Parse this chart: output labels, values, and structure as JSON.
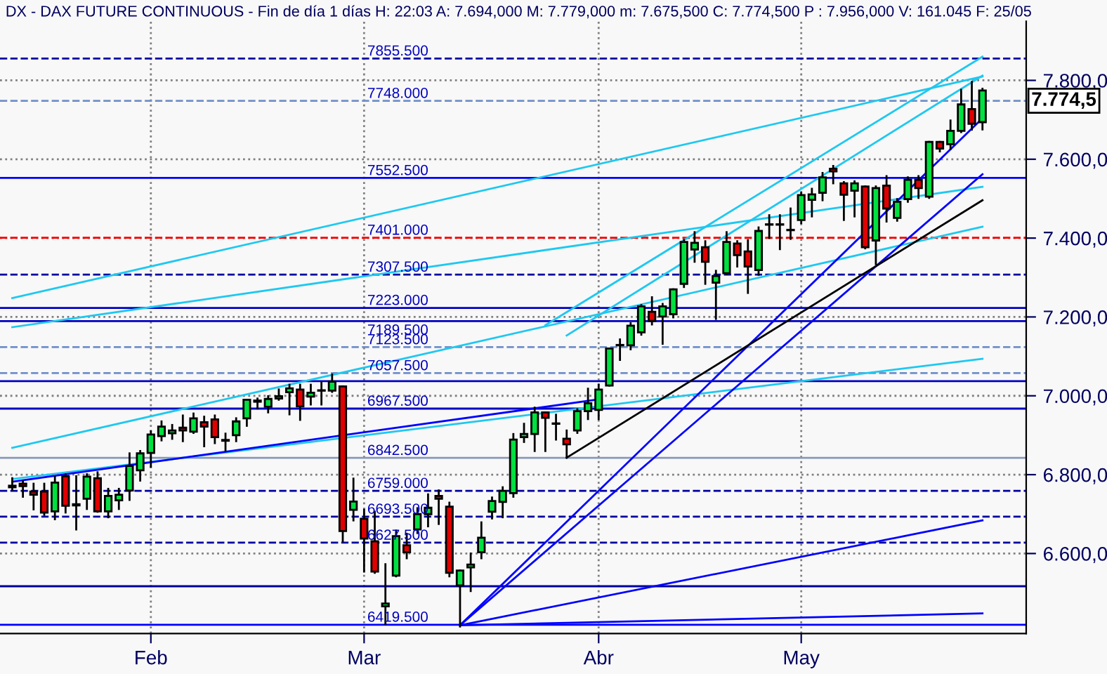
{
  "chart_data": {
    "type": "candlestick",
    "title": "DX - DAX FUTURE CONTINUOUS - Fin de día 1 días H: 22:03 A: 7.694,000 M: 7.779,000 m: 7.675,500 C: 7.774,500 P : 7.956,000 V: 161.045 F: 25/05",
    "categories": [
      null,
      null,
      null,
      null,
      null,
      null,
      null,
      null,
      null,
      null,
      null,
      null,
      null,
      "Feb",
      null,
      null,
      null,
      null,
      null,
      null,
      null,
      null,
      null,
      null,
      null,
      null,
      null,
      null,
      null,
      null,
      null,
      null,
      null,
      "Mar",
      null,
      null,
      null,
      null,
      null,
      null,
      null,
      null,
      null,
      null,
      null,
      null,
      null,
      null,
      null,
      null,
      null,
      null,
      null,
      null,
      null,
      "Abr",
      null,
      null,
      null,
      null,
      null,
      null,
      null,
      null,
      null,
      null,
      null,
      null,
      null,
      null,
      null,
      null,
      null,
      null,
      "May",
      null,
      null,
      null,
      null,
      null,
      null,
      null,
      null,
      null,
      null,
      null,
      null,
      null,
      null,
      null,
      null,
      null
    ],
    "ohlc": [
      [
        6772,
        6791,
        6762,
        6768
      ],
      [
        6777,
        6783,
        6744,
        6771
      ],
      [
        6757,
        6777,
        6712,
        6749
      ],
      [
        6757,
        6777,
        6698,
        6704
      ],
      [
        6707,
        6794,
        6687,
        6780
      ],
      [
        6796,
        6801,
        6704,
        6721
      ],
      [
        6725,
        6796,
        6661,
        6722
      ],
      [
        6739,
        6801,
        6713,
        6795
      ],
      [
        6791,
        6806,
        6706,
        6707
      ],
      [
        6707,
        6764,
        6692,
        6746
      ],
      [
        6735,
        6764,
        6713,
        6749
      ],
      [
        6760,
        6854,
        6736,
        6822
      ],
      [
        6811,
        6860,
        6785,
        6854
      ],
      [
        6855,
        6910,
        6820,
        6902
      ],
      [
        6898,
        6935,
        6887,
        6922
      ],
      [
        6905,
        6926,
        6891,
        6912
      ],
      [
        6919,
        6950,
        6885,
        6912
      ],
      [
        6909,
        6955,
        6906,
        6943
      ],
      [
        6933,
        6947,
        6872,
        6922
      ],
      [
        6940,
        6950,
        6880,
        6895
      ],
      [
        6888,
        6904,
        6862,
        6886
      ],
      [
        6900,
        6943,
        6885,
        6935
      ],
      [
        6943,
        6990,
        6924,
        6990
      ],
      [
        6985,
        6993,
        6968,
        6988
      ],
      [
        6972,
        6999,
        6958,
        6992
      ],
      [
        6993,
        7016,
        6990,
        6999
      ],
      [
        7009,
        7028,
        6953,
        7019
      ],
      [
        7016,
        7028,
        6939,
        6973
      ],
      [
        6998,
        7028,
        6978,
        7008
      ],
      [
        7013,
        7033,
        6978,
        7014
      ],
      [
        7013,
        7054,
        7010,
        7036
      ],
      [
        7024,
        7024,
        6631,
        6657
      ],
      [
        6711,
        6790,
        6684,
        6732
      ],
      [
        6688,
        6711,
        6554,
        6638
      ],
      [
        6631,
        6706,
        6551,
        6554
      ],
      [
        6466,
        6573,
        6421,
        6473
      ],
      [
        6544,
        6658,
        6542,
        6644
      ],
      [
        6621,
        6650,
        6588,
        6603
      ],
      [
        6661,
        6715,
        6652,
        6700
      ],
      [
        6700,
        6750,
        6669,
        6716
      ],
      [
        6746,
        6760,
        6675,
        6739
      ],
      [
        6719,
        6729,
        6542,
        6551
      ],
      [
        6519,
        6557,
        6415,
        6557
      ],
      [
        6565,
        6600,
        6505,
        6572
      ],
      [
        6603,
        6679,
        6588,
        6640
      ],
      [
        6706,
        6742,
        6689,
        6733
      ],
      [
        6731,
        6768,
        6692,
        6759
      ],
      [
        6753,
        6903,
        6744,
        6889
      ],
      [
        6895,
        6929,
        6883,
        6903
      ],
      [
        6903,
        6970,
        6860,
        6958
      ],
      [
        6958,
        6958,
        6860,
        6944
      ],
      [
        6929,
        6952,
        6889,
        6930
      ],
      [
        6891,
        6912,
        6843,
        6877
      ],
      [
        6912,
        6966,
        6906,
        6961
      ],
      [
        6961,
        7018,
        6941,
        6981
      ],
      [
        6964,
        7028,
        6941,
        7016
      ],
      [
        7026,
        7120,
        7026,
        7120
      ],
      [
        7128,
        7143,
        7091,
        7129
      ],
      [
        7128,
        7184,
        7118,
        7178
      ],
      [
        7161,
        7230,
        7155,
        7227
      ],
      [
        7213,
        7250,
        7181,
        7190
      ],
      [
        7201,
        7233,
        7132,
        7227
      ],
      [
        7207,
        7270,
        7199,
        7270
      ],
      [
        7284,
        7395,
        7276,
        7390
      ],
      [
        7371,
        7415,
        7340,
        7388
      ],
      [
        7377,
        7392,
        7284,
        7340
      ],
      [
        7287,
        7317,
        7195,
        7304
      ],
      [
        7311,
        7415,
        7309,
        7390
      ],
      [
        7386,
        7392,
        7328,
        7357
      ],
      [
        7366,
        7395,
        7261,
        7328
      ],
      [
        7319,
        7427,
        7307,
        7418
      ],
      [
        7435,
        7458,
        7400,
        7434
      ],
      [
        7435,
        7458,
        7372,
        7434
      ],
      [
        7421,
        7475,
        7398,
        7420
      ],
      [
        7446,
        7516,
        7438,
        7509
      ],
      [
        7497,
        7525,
        7455,
        7511
      ],
      [
        7515,
        7565,
        7496,
        7554
      ],
      [
        7576,
        7583,
        7539,
        7569
      ],
      [
        7539,
        7542,
        7446,
        7510
      ],
      [
        7520,
        7544,
        7455,
        7539
      ],
      [
        7531,
        7531,
        7374,
        7377
      ],
      [
        7394,
        7531,
        7334,
        7527
      ],
      [
        7533,
        7557,
        7442,
        7475
      ],
      [
        7451,
        7499,
        7444,
        7492
      ],
      [
        7499,
        7554,
        7492,
        7548
      ],
      [
        7548,
        7557,
        7502,
        7527
      ],
      [
        7505,
        7644,
        7502,
        7644
      ],
      [
        7644,
        7644,
        7620,
        7627
      ],
      [
        7638,
        7698,
        7626,
        7672
      ],
      [
        7672,
        7776,
        7669,
        7739
      ],
      [
        7727,
        7796,
        7675,
        7690
      ],
      [
        7694,
        7779,
        7675.5,
        7774.5
      ]
    ],
    "colors": [
      "#e00000",
      "#e00000",
      "#e00000",
      "#e00000",
      "#00e040",
      "#e00000",
      "#e00000",
      "#00e040",
      "#e00000",
      "#00e040",
      "#00e040",
      "#00e040",
      "#00e040",
      "#00e040",
      "#00e040",
      "#00e040",
      "#e00000",
      "#00e040",
      "#e00000",
      "#e00000",
      "#e00000",
      "#00e040",
      "#00e040",
      "#00e040",
      "#00e040",
      "#00e040",
      "#00e040",
      "#e00000",
      "#00e040",
      "#00e040",
      "#00e040",
      "#e00000",
      "#00e040",
      "#e00000",
      "#e00000",
      "#00e040",
      "#00e040",
      "#e00000",
      "#00e040",
      "#00e040",
      "#e00000",
      "#e00000",
      "#00e040",
      "#00e040",
      "#00e040",
      "#00e040",
      "#00e040",
      "#00e040",
      "#00e040",
      "#00e040",
      "#e00000",
      "#00e040",
      "#e00000",
      "#00e040",
      "#00e040",
      "#00e040",
      "#00e040",
      "#00e040",
      "#00e040",
      "#00e040",
      "#e00000",
      "#00e040",
      "#00e040",
      "#00e040",
      "#00e040",
      "#e00000",
      "#00e040",
      "#00e040",
      "#e00000",
      "#e00000",
      "#00e040",
      "#e00000",
      "#e00000",
      "#e00000",
      "#00e040",
      "#00e040",
      "#00e040",
      "#e00000",
      "#e00000",
      "#00e040",
      "#e00000",
      "#00e040",
      "#e00000",
      "#00e040",
      "#00e040",
      "#e00000",
      "#00e040",
      "#e00000",
      "#00e040",
      "#00e040",
      "#e00000",
      "#00e040"
    ],
    "series": [
      {
        "type": "line",
        "color": "#1ec8f0",
        "values": [
          7248,
          null,
          null,
          null,
          null,
          null,
          null,
          null,
          null,
          null,
          null,
          null,
          null,
          null,
          null,
          null,
          null,
          null,
          null,
          null,
          null,
          null,
          null,
          null,
          null,
          null,
          null,
          null,
          null,
          null,
          null,
          null,
          null,
          null,
          null,
          null,
          null,
          null,
          null,
          null,
          null,
          null,
          null,
          null,
          null,
          null,
          null,
          null,
          null,
          null,
          null,
          null,
          null,
          null,
          null,
          null,
          null,
          null,
          null,
          null,
          null,
          null,
          null,
          null,
          null,
          null,
          null,
          null,
          null,
          null,
          null,
          null,
          null,
          null,
          null,
          null,
          null,
          null,
          null,
          null,
          null,
          null,
          null,
          null,
          null,
          null,
          null,
          null,
          null,
          null,
          null,
          7810
        ]
      },
      {
        "type": "line",
        "color": "#1ec8f0",
        "values": [
          7174,
          null,
          null,
          null,
          null,
          null,
          null,
          null,
          null,
          null,
          null,
          null,
          null,
          null,
          null,
          null,
          null,
          null,
          null,
          null,
          null,
          null,
          null,
          null,
          null,
          null,
          null,
          null,
          null,
          null,
          null,
          null,
          null,
          null,
          null,
          null,
          null,
          null,
          null,
          null,
          null,
          null,
          null,
          null,
          null,
          null,
          null,
          null,
          null,
          null,
          null,
          null,
          null,
          null,
          null,
          null,
          null,
          null,
          null,
          null,
          null,
          null,
          null,
          null,
          null,
          null,
          null,
          null,
          null,
          null,
          null,
          null,
          null,
          null,
          null,
          null,
          null,
          null,
          null,
          null,
          null,
          null,
          null,
          null,
          null,
          null,
          null,
          null,
          null,
          null,
          null,
          7530
        ]
      },
      {
        "type": "line",
        "color": "#1ec8f0",
        "values": [
          6789,
          null,
          null,
          null,
          null,
          null,
          null,
          null,
          null,
          null,
          null,
          null,
          null,
          null,
          null,
          null,
          null,
          null,
          null,
          null,
          null,
          null,
          null,
          null,
          null,
          null,
          null,
          null,
          null,
          null,
          null,
          null,
          null,
          null,
          null,
          null,
          null,
          null,
          null,
          null,
          null,
          null,
          null,
          null,
          null,
          null,
          null,
          null,
          null,
          null,
          null,
          null,
          null,
          null,
          null,
          null,
          null,
          null,
          null,
          null,
          null,
          null,
          null,
          null,
          null,
          null,
          null,
          null,
          null,
          null,
          null,
          null,
          null,
          null,
          null,
          null,
          null,
          null,
          null,
          null,
          null,
          null,
          null,
          null,
          null,
          null,
          null,
          null,
          null,
          null,
          null,
          7094
        ]
      },
      {
        "type": "line",
        "color": "#1ec8f0",
        "values": [
          6868,
          null,
          null,
          null,
          null,
          null,
          null,
          null,
          null,
          null,
          null,
          null,
          null,
          null,
          null,
          null,
          null,
          null,
          null,
          null,
          null,
          null,
          null,
          null,
          null,
          null,
          null,
          null,
          null,
          null,
          null,
          null,
          null,
          null,
          null,
          null,
          null,
          null,
          null,
          null,
          null,
          null,
          null,
          null,
          null,
          null,
          null,
          null,
          null,
          null,
          null,
          null,
          null,
          null,
          null,
          null,
          null,
          null,
          null,
          null,
          null,
          null,
          null,
          null,
          null,
          null,
          null,
          null,
          null,
          null,
          null,
          null,
          null,
          null,
          null,
          null,
          null,
          null,
          null,
          null,
          null,
          null,
          null,
          null,
          null,
          null,
          null,
          null,
          null,
          null,
          null,
          7429
        ]
      },
      {
        "type": "line",
        "color": "#1ec8f0",
        "values": [
          null,
          null,
          null,
          null,
          null,
          null,
          null,
          null,
          null,
          null,
          null,
          null,
          null,
          null,
          null,
          null,
          null,
          null,
          null,
          null,
          null,
          null,
          null,
          null,
          null,
          null,
          null,
          null,
          null,
          null,
          null,
          null,
          null,
          null,
          null,
          null,
          null,
          null,
          null,
          null,
          null,
          null,
          null,
          null,
          null,
          null,
          null,
          null,
          null,
          null,
          null,
          null,
          7153,
          null,
          null,
          null,
          null,
          null,
          null,
          null,
          null,
          null,
          null,
          null,
          null,
          null,
          null,
          null,
          null,
          null,
          null,
          null,
          null,
          null,
          null,
          null,
          null,
          null,
          null,
          null,
          null,
          null,
          null,
          null,
          null,
          null,
          null,
          null,
          null,
          null,
          null,
          7812
        ]
      },
      {
        "type": "line",
        "color": "#1ec8f0",
        "values": [
          null,
          null,
          null,
          null,
          null,
          null,
          null,
          null,
          null,
          null,
          null,
          null,
          null,
          null,
          null,
          null,
          null,
          null,
          null,
          null,
          null,
          null,
          null,
          null,
          null,
          null,
          null,
          null,
          null,
          null,
          null,
          null,
          null,
          null,
          null,
          null,
          null,
          null,
          null,
          null,
          null,
          null,
          null,
          null,
          null,
          null,
          null,
          null,
          null,
          null,
          7179,
          null,
          null,
          null,
          null,
          null,
          null,
          null,
          null,
          null,
          null,
          null,
          null,
          null,
          null,
          null,
          null,
          null,
          null,
          null,
          null,
          null,
          null,
          null,
          null,
          null,
          null,
          null,
          null,
          null,
          null,
          null,
          null,
          null,
          null,
          null,
          null,
          null,
          null,
          null,
          null,
          7860
        ]
      },
      {
        "type": "line",
        "color": "#0000ff",
        "values": [
          6782,
          null,
          null,
          null,
          null,
          null,
          null,
          null,
          null,
          null,
          null,
          null,
          null,
          null,
          null,
          null,
          null,
          null,
          null,
          null,
          null,
          null,
          null,
          null,
          null,
          null,
          null,
          null,
          null,
          null,
          null,
          null,
          null,
          null,
          null,
          null,
          null,
          null,
          null,
          null,
          null,
          null,
          null,
          null,
          null,
          null,
          null,
          null,
          null,
          null,
          null,
          null,
          null,
          null,
          null,
          6991,
          null,
          null,
          null,
          null,
          null,
          null,
          null,
          null,
          null,
          null,
          null,
          null,
          null,
          null,
          null,
          null,
          null,
          null,
          null,
          null,
          null,
          null,
          null,
          null,
          null,
          null,
          null,
          null,
          null,
          null,
          null,
          null,
          null,
          null,
          null,
          null
        ]
      },
      {
        "type": "line",
        "color": "#0000ff",
        "values": [
          null,
          null,
          null,
          null,
          null,
          null,
          null,
          null,
          null,
          null,
          null,
          null,
          null,
          null,
          null,
          null,
          null,
          null,
          null,
          null,
          null,
          null,
          null,
          null,
          null,
          null,
          null,
          null,
          null,
          null,
          null,
          null,
          null,
          null,
          null,
          null,
          null,
          null,
          null,
          null,
          null,
          null,
          6418,
          null,
          null,
          null,
          null,
          null,
          null,
          null,
          null,
          null,
          null,
          null,
          null,
          null,
          null,
          null,
          null,
          null,
          null,
          null,
          null,
          null,
          null,
          null,
          null,
          null,
          null,
          null,
          null,
          null,
          null,
          null,
          null,
          null,
          null,
          null,
          null,
          null,
          null,
          null,
          null,
          null,
          null,
          null,
          null,
          null,
          null,
          null,
          null,
          7704
        ]
      },
      {
        "type": "line",
        "color": "#0000ff",
        "values": [
          null,
          null,
          null,
          null,
          null,
          null,
          null,
          null,
          null,
          null,
          null,
          null,
          null,
          null,
          null,
          null,
          null,
          null,
          null,
          null,
          null,
          null,
          null,
          null,
          null,
          null,
          null,
          null,
          null,
          null,
          null,
          null,
          null,
          null,
          null,
          null,
          null,
          null,
          null,
          null,
          null,
          null,
          6418,
          null,
          null,
          null,
          null,
          null,
          null,
          null,
          null,
          null,
          null,
          null,
          null,
          null,
          null,
          null,
          null,
          null,
          null,
          null,
          null,
          null,
          null,
          null,
          null,
          null,
          null,
          null,
          null,
          null,
          null,
          null,
          null,
          null,
          null,
          null,
          null,
          null,
          null,
          null,
          null,
          null,
          null,
          null,
          null,
          null,
          null,
          null,
          null,
          7562
        ]
      },
      {
        "type": "line",
        "color": "#0000ff",
        "values": [
          null,
          null,
          null,
          null,
          null,
          null,
          null,
          null,
          null,
          null,
          null,
          null,
          null,
          null,
          null,
          null,
          null,
          null,
          null,
          null,
          null,
          null,
          null,
          null,
          null,
          null,
          null,
          null,
          null,
          null,
          null,
          null,
          null,
          null,
          null,
          null,
          null,
          null,
          null,
          null,
          null,
          null,
          6418,
          null,
          null,
          null,
          null,
          null,
          null,
          null,
          null,
          null,
          null,
          null,
          null,
          null,
          null,
          null,
          null,
          null,
          null,
          null,
          null,
          null,
          null,
          null,
          null,
          null,
          null,
          null,
          null,
          null,
          null,
          null,
          null,
          null,
          null,
          null,
          null,
          null,
          null,
          null,
          null,
          null,
          null,
          null,
          null,
          null,
          null,
          null,
          null,
          6684
        ]
      },
      {
        "type": "line",
        "color": "#0000ff",
        "values": [
          null,
          null,
          null,
          null,
          null,
          null,
          null,
          null,
          null,
          null,
          null,
          null,
          null,
          null,
          null,
          null,
          null,
          null,
          null,
          null,
          null,
          null,
          null,
          null,
          null,
          null,
          null,
          null,
          null,
          null,
          null,
          null,
          null,
          null,
          null,
          null,
          null,
          null,
          null,
          null,
          null,
          null,
          6418,
          null,
          null,
          null,
          null,
          null,
          null,
          null,
          null,
          null,
          null,
          null,
          null,
          null,
          null,
          null,
          null,
          null,
          null,
          null,
          null,
          null,
          null,
          null,
          null,
          null,
          null,
          null,
          null,
          null,
          null,
          null,
          null,
          null,
          null,
          null,
          null,
          null,
          null,
          null,
          null,
          null,
          null,
          null,
          null,
          null,
          null,
          null,
          null,
          6448
        ]
      },
      {
        "type": "line",
        "color": "#000000",
        "values": [
          null,
          null,
          null,
          null,
          null,
          null,
          null,
          null,
          null,
          null,
          null,
          null,
          null,
          null,
          null,
          null,
          null,
          null,
          null,
          null,
          null,
          null,
          null,
          null,
          null,
          null,
          null,
          null,
          null,
          null,
          null,
          null,
          null,
          null,
          null,
          null,
          null,
          null,
          null,
          null,
          null,
          null,
          null,
          null,
          null,
          null,
          null,
          null,
          null,
          null,
          null,
          null,
          6843,
          null,
          null,
          null,
          null,
          null,
          null,
          null,
          null,
          null,
          null,
          null,
          null,
          null,
          null,
          null,
          null,
          null,
          null,
          null,
          null,
          null,
          null,
          null,
          null,
          null,
          null,
          null,
          null,
          null,
          null,
          null,
          null,
          null,
          null,
          null,
          null,
          null,
          null,
          7496
        ]
      }
    ],
    "ref_lines": [
      {
        "axis": "y",
        "value": 7855.5,
        "label": "7855.500",
        "color": "#0000a0",
        "line_style": "dashed"
      },
      {
        "axis": "y",
        "value": 7748,
        "label": "7748.000",
        "color": "#7090c8",
        "line_style": "dashed"
      },
      {
        "axis": "y",
        "value": 7552.5,
        "label": "7552.500",
        "color": "#0000ff",
        "line_style": "solid"
      },
      {
        "axis": "y",
        "value": 7401,
        "label": "7401.000",
        "color": "#ff0000",
        "line_style": "dashed"
      },
      {
        "axis": "y",
        "value": 7307.5,
        "label": "7307.500",
        "color": "#0000a0",
        "line_style": "dashed"
      },
      {
        "axis": "y",
        "value": 7223,
        "label": "7223.000",
        "color": "#0000c0",
        "line_style": "solid"
      },
      {
        "axis": "y",
        "value": 7189.5,
        "label": "7189.500",
        "color": "#0000c0",
        "line_style": "solid"
      },
      {
        "axis": "y",
        "value": 7123.5,
        "label": "7123.500",
        "color": "#7090c8",
        "line_style": "dashed"
      },
      {
        "axis": "y",
        "value": 7057.5,
        "label": "7057.500",
        "color": "#7090c8",
        "line_style": "dashed"
      },
      {
        "axis": "y",
        "value": 7037,
        "label": null,
        "color": "#0000c0",
        "line_style": "solid"
      },
      {
        "axis": "y",
        "value": 6967.5,
        "label": "6967.500",
        "color": "#0000c0",
        "line_style": "solid"
      },
      {
        "axis": "y",
        "value": 6842.5,
        "label": "6842.500",
        "color": "#8898b8",
        "line_style": "solid"
      },
      {
        "axis": "y",
        "value": 6759,
        "label": "6759.000",
        "color": "#0000a0",
        "line_style": "dashed"
      },
      {
        "axis": "y",
        "value": 6693.5,
        "label": "6693.500",
        "color": "#0000a0",
        "line_style": "dashed"
      },
      {
        "axis": "y",
        "value": 6627.5,
        "label": "6627.500",
        "color": "#0000a0",
        "line_style": "dashed"
      },
      {
        "axis": "y",
        "value": 6517,
        "label": null,
        "color": "#0000a0",
        "line_style": "solid"
      },
      {
        "axis": "y",
        "value": 6419.5,
        "label": "6419.500",
        "color": "#0000ff",
        "line_style": "solid"
      }
    ],
    "annotations": [
      "7.774,5"
    ],
    "ylim": [
      6397,
      7950
    ],
    "yticks": [
      {
        "value": 6600,
        "label": "6.600,0"
      },
      {
        "value": 6800,
        "label": "6.800,0"
      },
      {
        "value": 7000,
        "label": "7.000,0"
      },
      {
        "value": 7200,
        "label": "7.200,0"
      },
      {
        "value": 7400,
        "label": "7.400,0"
      },
      {
        "value": 7600,
        "label": "7.600,0"
      },
      {
        "value": 7800,
        "label": "7.800,0"
      }
    ],
    "grid": true
  }
}
